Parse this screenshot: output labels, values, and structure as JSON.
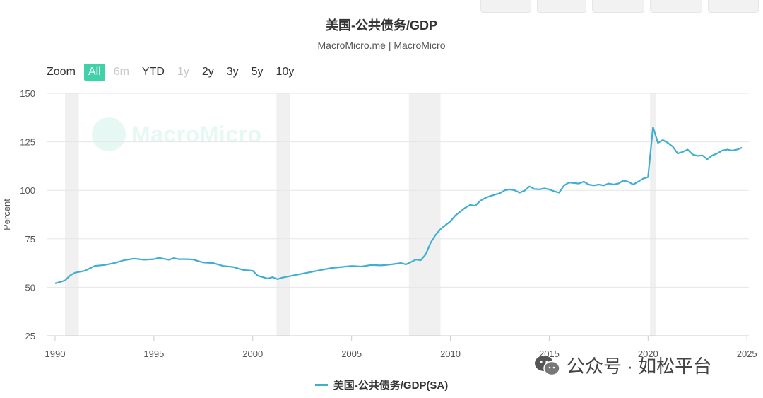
{
  "chart": {
    "title": "美国-公共债务/GDP",
    "subtitle": "MacroMicro.me | MacroMicro",
    "zoom_label": "Zoom",
    "zoom_buttons": [
      {
        "label": "All",
        "state": "active"
      },
      {
        "label": "6m",
        "state": "disabled"
      },
      {
        "label": "YTD",
        "state": "normal"
      },
      {
        "label": "1y",
        "state": "disabled"
      },
      {
        "label": "2y",
        "state": "normal"
      },
      {
        "label": "3y",
        "state": "normal"
      },
      {
        "label": "5y",
        "state": "normal"
      },
      {
        "label": "10y",
        "state": "normal"
      }
    ],
    "watermark": "MacroMicro",
    "footer_watermark": "公众号 · 如松平台",
    "accent_color": "#40d1a8",
    "line_color": "#40aed3"
  },
  "chart_data": {
    "type": "line",
    "title": "美国-公共债务/GDP",
    "subtitle": "MacroMicro.me | MacroMicro",
    "ylabel": "Percent",
    "xlabel": "",
    "xlim": [
      1990,
      2025.1
    ],
    "ylim": [
      25,
      150
    ],
    "x_ticks": [
      1990,
      1995,
      2000,
      2005,
      2010,
      2015,
      2020,
      2025
    ],
    "y_ticks": [
      25,
      50,
      75,
      100,
      125,
      150
    ],
    "grid": "horizontal",
    "legend_position": "bottom",
    "recessions": [
      [
        1990.5,
        1991.2
      ],
      [
        2001.2,
        2001.9
      ],
      [
        2007.9,
        2009.5
      ],
      [
        2020.1,
        2020.4
      ]
    ],
    "series": [
      {
        "name": "美国-公共债务/GDP(SA)",
        "color": "#40aed3",
        "points": [
          [
            1990.0,
            52.0
          ],
          [
            1990.5,
            53.5
          ],
          [
            1990.75,
            56
          ],
          [
            1991.0,
            57.5
          ],
          [
            1991.5,
            58.5
          ],
          [
            1992.0,
            61.0
          ],
          [
            1992.5,
            61.5
          ],
          [
            1993.0,
            62.5
          ],
          [
            1993.5,
            64.0
          ],
          [
            1994.0,
            64.8
          ],
          [
            1994.5,
            64.2
          ],
          [
            1995.0,
            64.5
          ],
          [
            1995.25,
            65.2
          ],
          [
            1995.75,
            64.2
          ],
          [
            1996.0,
            65.0
          ],
          [
            1996.25,
            64.5
          ],
          [
            1996.75,
            64.5
          ],
          [
            1997.0,
            64.3
          ],
          [
            1997.25,
            63.5
          ],
          [
            1997.5,
            62.8
          ],
          [
            1998.0,
            62.5
          ],
          [
            1998.5,
            61.0
          ],
          [
            1999.0,
            60.5
          ],
          [
            1999.5,
            59.0
          ],
          [
            2000.0,
            58.5
          ],
          [
            2000.25,
            56.0
          ],
          [
            2000.75,
            54.5
          ],
          [
            2001.0,
            55.2
          ],
          [
            2001.25,
            54.2
          ],
          [
            2001.5,
            55.0
          ],
          [
            2002.0,
            56.0
          ],
          [
            2002.5,
            57.0
          ],
          [
            2003.0,
            58.0
          ],
          [
            2003.5,
            59.0
          ],
          [
            2004.0,
            60.0
          ],
          [
            2004.5,
            60.5
          ],
          [
            2005.0,
            61.0
          ],
          [
            2005.5,
            60.7
          ],
          [
            2006.0,
            61.5
          ],
          [
            2006.5,
            61.3
          ],
          [
            2007.0,
            61.8
          ],
          [
            2007.5,
            62.5
          ],
          [
            2007.75,
            61.8
          ],
          [
            2008.0,
            63.0
          ],
          [
            2008.25,
            64.3
          ],
          [
            2008.5,
            64.0
          ],
          [
            2008.75,
            67.0
          ],
          [
            2009.0,
            73.0
          ],
          [
            2009.25,
            77.0
          ],
          [
            2009.5,
            80.0
          ],
          [
            2009.75,
            82.0
          ],
          [
            2010.0,
            84.0
          ],
          [
            2010.25,
            87.0
          ],
          [
            2010.5,
            89.0
          ],
          [
            2010.75,
            91.0
          ],
          [
            2011.0,
            92.5
          ],
          [
            2011.25,
            92.0
          ],
          [
            2011.5,
            94.5
          ],
          [
            2011.75,
            96.0
          ],
          [
            2012.0,
            97.0
          ],
          [
            2012.5,
            98.5
          ],
          [
            2012.75,
            100.0
          ],
          [
            2013.0,
            100.5
          ],
          [
            2013.25,
            100.0
          ],
          [
            2013.5,
            98.8
          ],
          [
            2013.75,
            99.8
          ],
          [
            2014.0,
            102.0
          ],
          [
            2014.25,
            100.7
          ],
          [
            2014.5,
            100.5
          ],
          [
            2014.75,
            101.0
          ],
          [
            2015.0,
            100.5
          ],
          [
            2015.25,
            99.5
          ],
          [
            2015.5,
            98.8
          ],
          [
            2015.75,
            102.5
          ],
          [
            2016.0,
            104.0
          ],
          [
            2016.5,
            103.5
          ],
          [
            2016.75,
            104.5
          ],
          [
            2017.0,
            103.0
          ],
          [
            2017.25,
            102.5
          ],
          [
            2017.5,
            103.0
          ],
          [
            2017.75,
            102.5
          ],
          [
            2018.0,
            103.5
          ],
          [
            2018.25,
            103.0
          ],
          [
            2018.5,
            103.5
          ],
          [
            2018.75,
            105.0
          ],
          [
            2019.0,
            104.5
          ],
          [
            2019.25,
            103.0
          ],
          [
            2019.5,
            104.5
          ],
          [
            2019.75,
            106.0
          ],
          [
            2020.0,
            106.8
          ],
          [
            2020.25,
            132.5
          ],
          [
            2020.5,
            124.5
          ],
          [
            2020.75,
            126.0
          ],
          [
            2021.0,
            124.5
          ],
          [
            2021.25,
            122.5
          ],
          [
            2021.5,
            119.0
          ],
          [
            2021.75,
            119.8
          ],
          [
            2022.0,
            121.0
          ],
          [
            2022.25,
            118.5
          ],
          [
            2022.5,
            117.8
          ],
          [
            2022.75,
            118.0
          ],
          [
            2023.0,
            116.0
          ],
          [
            2023.25,
            118.0
          ],
          [
            2023.5,
            119.0
          ],
          [
            2023.75,
            120.5
          ],
          [
            2024.0,
            121.0
          ],
          [
            2024.25,
            120.5
          ],
          [
            2024.5,
            121.0
          ],
          [
            2024.75,
            122.0
          ]
        ]
      }
    ]
  }
}
